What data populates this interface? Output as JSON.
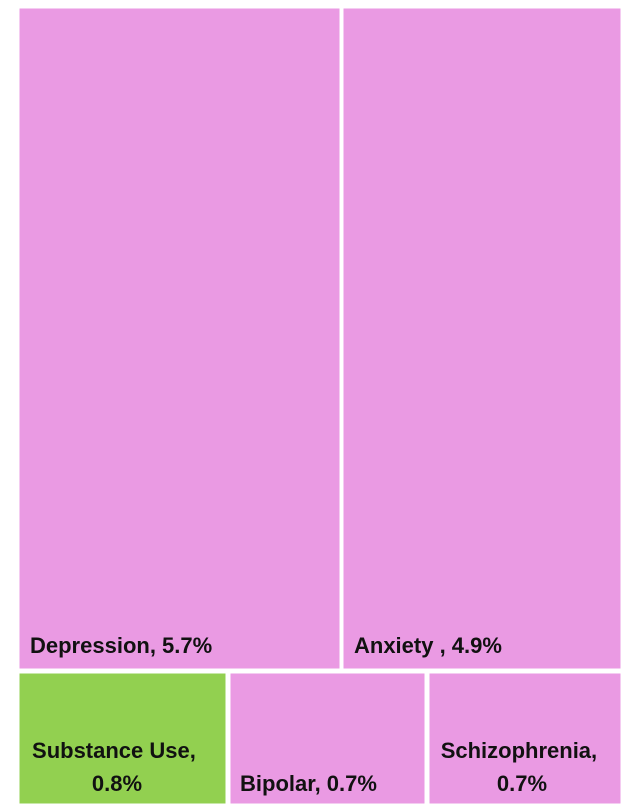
{
  "chart_data": {
    "type": "treemap",
    "items": [
      {
        "name": "Depression",
        "value": 5.7,
        "label": "Depression, 5.7%",
        "color": "#EA9AE3"
      },
      {
        "name": "Anxiety",
        "value": 4.9,
        "label": "Anxiety , 4.9%",
        "color": "#EA9AE3"
      },
      {
        "name": "Substance Use",
        "value": 0.8,
        "label_lines": [
          "Substance Use,",
          "0.8%"
        ],
        "color": "#92D050"
      },
      {
        "name": "Bipolar",
        "value": 0.7,
        "label": "Bipolar, 0.7%",
        "color": "#EA9AE3"
      },
      {
        "name": "Schizophrenia",
        "value": 0.7,
        "label_lines": [
          "Schizophrenia,",
          "0.7%"
        ],
        "color": "#EA9AE3"
      }
    ]
  }
}
